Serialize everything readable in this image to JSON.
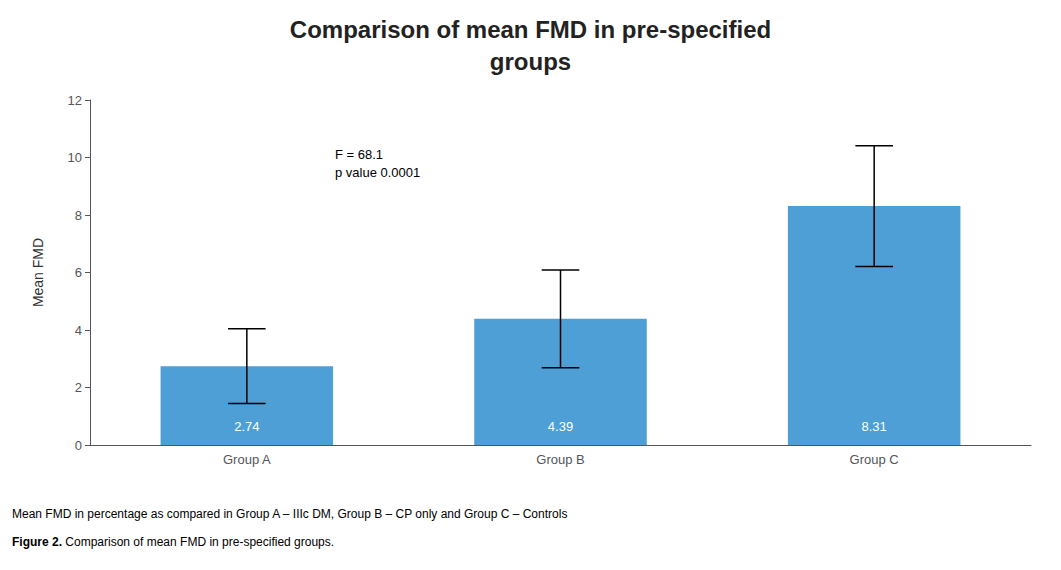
{
  "chart_data": {
    "type": "bar",
    "title": "Comparison of mean FMD in pre-specified\ngroups",
    "categories": [
      "Group A",
      "Group B",
      "Group C"
    ],
    "values": [
      2.74,
      4.39,
      8.31
    ],
    "errors": [
      1.3,
      1.7,
      2.1
    ],
    "color": "#4D9FD6",
    "ylabel": "Mean FMD",
    "ylim": [
      0,
      12
    ],
    "yticks": [
      0,
      2,
      4,
      6,
      8,
      10,
      12
    ],
    "grid": false,
    "data_labels": true,
    "annotations": [
      "F = 68.1\np value 0.0001"
    ],
    "captions": [
      {
        "text": "Mean FMD in percentage as compared in Group A – IIIc DM, Group B – CP only and Group C – Controls"
      },
      {
        "label": "Figure 2.",
        "text": " Comparison of mean FMD in pre-specified groups."
      }
    ]
  }
}
